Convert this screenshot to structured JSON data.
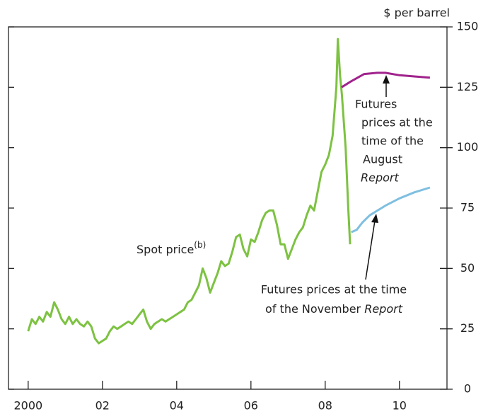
{
  "chart_data": {
    "type": "line",
    "y_axis_label": "$ per barrel",
    "xlim": [
      1999.47,
      2011.28
    ],
    "ylim": [
      0,
      150
    ],
    "xticks": [
      2000,
      {
        "value": 2002,
        "label": "02"
      },
      {
        "value": 2004,
        "label": "04"
      },
      {
        "value": 2006,
        "label": "06"
      },
      {
        "value": 2008,
        "label": "08"
      },
      {
        "value": 2010,
        "label": "10"
      }
    ],
    "yticks": [
      0,
      25,
      50,
      75,
      100,
      125,
      150
    ],
    "grid": false,
    "annotations": {
      "spot_superscript": "(b)",
      "august": [
        "Futures",
        "prices at the",
        "time of the",
        "August",
        "Report"
      ],
      "november": [
        "Futures prices at the time",
        "of the November ",
        "Report"
      ]
    },
    "series": [
      {
        "name": "Spot price",
        "color": "#7dc242",
        "x": [
          2000.0,
          2000.1,
          2000.2,
          2000.3,
          2000.4,
          2000.5,
          2000.6,
          2000.7,
          2000.8,
          2000.9,
          2001.0,
          2001.1,
          2001.2,
          2001.3,
          2001.4,
          2001.5,
          2001.6,
          2001.7,
          2001.8,
          2001.9,
          2002.0,
          2002.1,
          2002.2,
          2002.3,
          2002.4,
          2002.5,
          2002.6,
          2002.7,
          2002.8,
          2002.9,
          2003.0,
          2003.1,
          2003.2,
          2003.3,
          2003.4,
          2003.5,
          2003.6,
          2003.7,
          2003.8,
          2003.9,
          2004.0,
          2004.1,
          2004.2,
          2004.3,
          2004.4,
          2004.5,
          2004.6,
          2004.7,
          2004.8,
          2004.9,
          2005.0,
          2005.1,
          2005.2,
          2005.3,
          2005.4,
          2005.5,
          2005.6,
          2005.7,
          2005.8,
          2005.9,
          2006.0,
          2006.1,
          2006.2,
          2006.3,
          2006.4,
          2006.5,
          2006.6,
          2006.7,
          2006.8,
          2006.9,
          2007.0,
          2007.1,
          2007.2,
          2007.3,
          2007.4,
          2007.5,
          2007.6,
          2007.7,
          2007.8,
          2007.9,
          2008.0,
          2008.1,
          2008.2,
          2008.3,
          2008.34,
          2008.4,
          2008.45,
          2008.55,
          2008.62,
          2008.67
        ],
        "values": [
          24,
          29,
          27,
          30,
          28,
          32,
          30,
          36,
          33,
          29,
          27,
          30,
          27,
          29,
          27,
          26,
          28,
          26,
          21,
          19,
          20,
          21,
          24,
          26,
          25,
          26,
          27,
          28,
          27,
          29,
          31,
          33,
          28,
          25,
          27,
          28,
          29,
          28,
          29,
          30,
          31,
          32,
          33,
          36,
          37,
          40,
          43,
          50,
          46,
          40,
          44,
          48,
          53,
          51,
          52,
          57,
          63,
          64,
          58,
          55,
          62,
          61,
          65,
          70,
          73,
          74,
          74,
          68,
          60,
          60,
          54,
          58,
          62,
          65,
          67,
          72,
          76,
          74,
          82,
          90,
          93,
          97,
          105,
          125,
          145,
          130,
          122,
          100,
          75,
          60
        ]
      },
      {
        "color": "#a0238c",
        "axis": "y",
        "x": [
          2008.44,
          2008.7,
          2009.05,
          2009.4,
          2009.62,
          2010.0,
          2010.4,
          2010.82
        ],
        "values": [
          125,
          127.5,
          130.5,
          131,
          131,
          130,
          129.5,
          129
        ]
      },
      {
        "color": "#7fbfe0",
        "x": [
          2008.7,
          2008.85,
          2009.0,
          2009.2,
          2009.62,
          2010.0,
          2010.4,
          2010.82
        ],
        "values": [
          65,
          66,
          69,
          72,
          76,
          79,
          81.5,
          83.5
        ]
      }
    ]
  }
}
